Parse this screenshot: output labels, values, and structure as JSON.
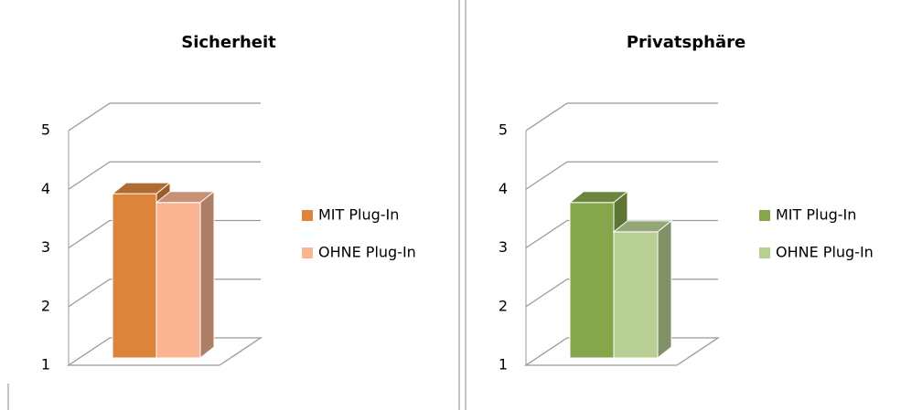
{
  "chart_data": [
    {
      "type": "bar3d",
      "title": "Sicherheit",
      "categories": [
        null
      ],
      "series": [
        {
          "name": "MIT Plug-In",
          "color": "#dd843b",
          "values": [
            3.8
          ]
        },
        {
          "name": "OHNE Plug-In",
          "color": "#fab491",
          "values": [
            3.65
          ]
        }
      ],
      "ylim": [
        1,
        5
      ],
      "yticks": [
        1,
        2,
        3,
        4,
        5
      ],
      "grid": true,
      "legend": "right"
    },
    {
      "type": "bar3d",
      "title": "Privatsphäre",
      "categories": [
        null
      ],
      "series": [
        {
          "name": "MIT Plug-In",
          "color": "#86a64c",
          "values": [
            3.65
          ]
        },
        {
          "name": "OHNE Plug-In",
          "color": "#b8cf93",
          "values": [
            3.15
          ]
        }
      ],
      "ylim": [
        1,
        5
      ],
      "yticks": [
        1,
        2,
        3,
        4,
        5
      ],
      "grid": true,
      "legend": "right"
    }
  ]
}
